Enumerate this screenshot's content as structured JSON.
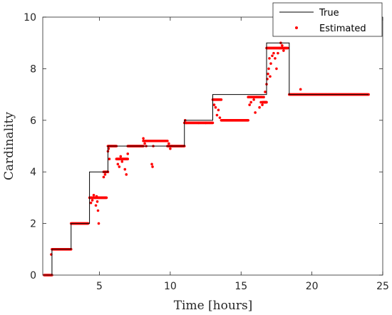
{
  "chart_data": {
    "type": "line",
    "xlabel": "Time [hours]",
    "ylabel": "Cardinality",
    "xlim": [
      1,
      25
    ],
    "ylim": [
      0,
      10
    ],
    "xticks": [
      5,
      10,
      15,
      20,
      25
    ],
    "yticks": [
      0,
      2,
      4,
      6,
      8,
      10
    ],
    "grid": false,
    "legend_position": "top-right",
    "series": [
      {
        "name": "True",
        "style": "step-line",
        "color": "#000000",
        "x": [
          1.1,
          1.65,
          3.0,
          4.3,
          5.6,
          8.0,
          11.0,
          13.0,
          16.8,
          18.4,
          24.0
        ],
        "y": [
          0,
          1,
          2,
          4,
          5,
          5,
          6,
          7,
          9,
          7,
          7
        ]
      },
      {
        "name": "Estimated",
        "style": "markers",
        "color": "#ff0000",
        "segments": [
          {
            "x0": 1.1,
            "x1": 1.65,
            "y": 0
          },
          {
            "x0": 1.65,
            "x1": 3.0,
            "y": 1.0
          },
          {
            "x0": 3.0,
            "x1": 4.2,
            "y": 2.0
          },
          {
            "x0": 4.3,
            "x1": 5.5,
            "y": 3.0
          },
          {
            "x0": 5.3,
            "x1": 5.6,
            "y": 4.0
          },
          {
            "x0": 5.6,
            "x1": 6.2,
            "y": 5.0
          },
          {
            "x0": 6.2,
            "x1": 7.0,
            "y": 4.5
          },
          {
            "x0": 7.0,
            "x1": 8.1,
            "y": 5.0
          },
          {
            "x0": 8.1,
            "x1": 9.8,
            "y": 5.2
          },
          {
            "x0": 9.8,
            "x1": 11.0,
            "y": 5.0
          },
          {
            "x0": 11.0,
            "x1": 13.0,
            "y": 5.9
          },
          {
            "x0": 13.0,
            "x1": 13.6,
            "y": 6.8
          },
          {
            "x0": 13.6,
            "x1": 15.5,
            "y": 6.0
          },
          {
            "x0": 15.5,
            "x1": 16.5,
            "y": 6.9
          },
          {
            "x0": 16.5,
            "x1": 16.8,
            "y": 6.7
          },
          {
            "x0": 16.8,
            "x1": 18.3,
            "y": 8.8
          },
          {
            "x0": 18.4,
            "x1": 24.0,
            "y": 7.0
          }
        ],
        "scatter": [
          [
            1.6,
            0.8
          ],
          [
            4.4,
            2.8
          ],
          [
            4.5,
            2.9
          ],
          [
            4.6,
            3.1
          ],
          [
            4.75,
            2.7
          ],
          [
            4.8,
            3.05
          ],
          [
            4.9,
            2.5
          ],
          [
            4.95,
            2.0
          ],
          [
            4.85,
            2.85
          ],
          [
            5.3,
            3.8
          ],
          [
            5.4,
            3.9
          ],
          [
            5.5,
            4.0
          ],
          [
            5.6,
            4.8
          ],
          [
            5.65,
            4.9
          ],
          [
            5.7,
            4.5
          ],
          [
            6.3,
            4.3
          ],
          [
            6.4,
            4.2
          ],
          [
            6.5,
            4.6
          ],
          [
            6.6,
            4.4
          ],
          [
            6.8,
            4.1
          ],
          [
            6.9,
            3.9
          ],
          [
            7.0,
            4.7
          ],
          [
            8.1,
            5.3
          ],
          [
            8.2,
            5.1
          ],
          [
            8.3,
            5.0
          ],
          [
            8.7,
            4.3
          ],
          [
            8.75,
            4.2
          ],
          [
            8.8,
            5.0
          ],
          [
            9.9,
            5.1
          ],
          [
            10.0,
            4.9
          ],
          [
            10.1,
            5.0
          ],
          [
            11.05,
            6.0
          ],
          [
            11.15,
            5.9
          ],
          [
            12.0,
            5.9
          ],
          [
            12.5,
            5.9
          ],
          [
            13.1,
            6.6
          ],
          [
            13.2,
            6.5
          ],
          [
            13.3,
            6.2
          ],
          [
            13.4,
            6.4
          ],
          [
            13.5,
            6.1
          ],
          [
            15.6,
            6.6
          ],
          [
            15.7,
            6.7
          ],
          [
            15.9,
            6.8
          ],
          [
            16.0,
            6.3
          ],
          [
            16.1,
            6.9
          ],
          [
            16.3,
            6.5
          ],
          [
            16.4,
            6.7
          ],
          [
            16.5,
            6.6
          ],
          [
            16.6,
            6.9
          ],
          [
            16.7,
            7.1
          ],
          [
            16.8,
            7.4
          ],
          [
            16.85,
            7.6
          ],
          [
            16.9,
            7.8
          ],
          [
            16.95,
            8.0
          ],
          [
            17.0,
            8.4
          ],
          [
            17.05,
            7.7
          ],
          [
            17.1,
            8.2
          ],
          [
            17.2,
            8.5
          ],
          [
            17.3,
            8.6
          ],
          [
            17.4,
            8.4
          ],
          [
            17.5,
            8.0
          ],
          [
            17.6,
            8.6
          ],
          [
            17.7,
            8.8
          ],
          [
            17.8,
            9.0
          ],
          [
            17.9,
            8.9
          ],
          [
            18.0,
            8.7
          ],
          [
            18.1,
            8.8
          ],
          [
            19.2,
            7.2
          ]
        ]
      }
    ]
  }
}
